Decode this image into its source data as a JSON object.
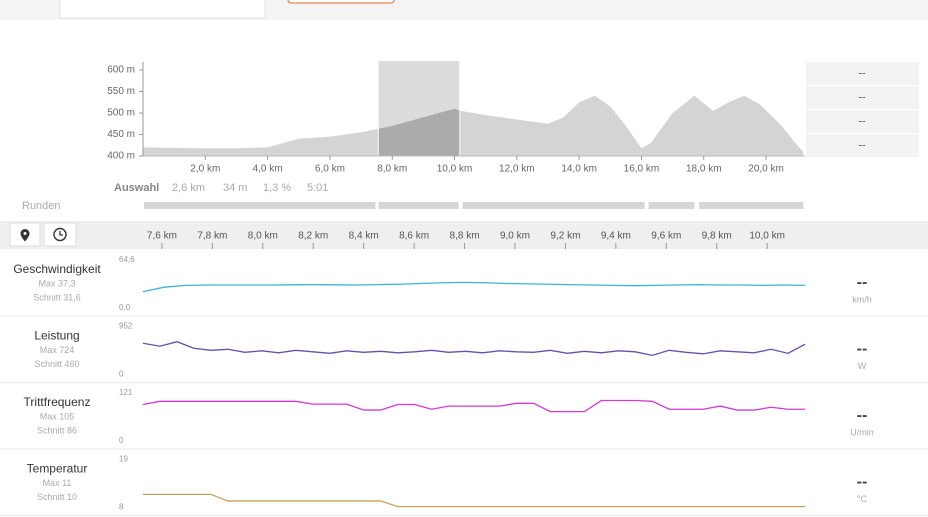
{
  "elevation": {
    "xlim": [
      0,
      21.25
    ],
    "xticks": [
      {
        "value": 2,
        "label": "2,0 km"
      },
      {
        "value": 4,
        "label": "4,0 km"
      },
      {
        "value": 6,
        "label": "6,0 km"
      },
      {
        "value": 8,
        "label": "8,0 km"
      },
      {
        "value": 10,
        "label": "10,0 km"
      },
      {
        "value": 12,
        "label": "12,0 km"
      },
      {
        "value": 14,
        "label": "14,0 km"
      },
      {
        "value": 16,
        "label": "16,0 km"
      },
      {
        "value": 18,
        "label": "18,0 km"
      },
      {
        "value": 20,
        "label": "20,0 km"
      }
    ],
    "yticks": [
      {
        "value": 400,
        "label": "400 m"
      },
      {
        "value": 450,
        "label": "450 m"
      },
      {
        "value": 500,
        "label": "500 m"
      },
      {
        "value": 550,
        "label": "550 m"
      },
      {
        "value": 600,
        "label": "600 m"
      }
    ],
    "selection": [
      7.55,
      10.17
    ],
    "x": [
      0,
      1,
      2,
      3,
      4,
      4.5,
      5,
      6,
      7,
      8,
      9,
      10,
      10.2,
      11,
      12,
      13,
      13.5,
      14,
      14.5,
      15,
      15.5,
      16,
      16.3,
      17,
      17.7,
      18.3,
      18.8,
      19.3,
      19.8,
      20.5,
      21,
      21.2
    ],
    "values": [
      420,
      419,
      418,
      418,
      420,
      430,
      440,
      445,
      455,
      470,
      490,
      510,
      505,
      495,
      485,
      475,
      490,
      525,
      540,
      515,
      470,
      418,
      430,
      500,
      540,
      505,
      525,
      540,
      520,
      470,
      425,
      410
    ],
    "stats": [
      "--",
      "--",
      "--",
      "--"
    ]
  },
  "selection_summary": {
    "label": "Auswahl",
    "distance": "2,6 km",
    "climb": "34 m",
    "grade": "1,3 %",
    "time": "5:01"
  },
  "laps": {
    "label": "Runden",
    "segments": [
      [
        0.03,
        7.46
      ],
      [
        7.56,
        10.13
      ],
      [
        10.26,
        16.1
      ],
      [
        16.23,
        17.7
      ],
      [
        17.85,
        21.2
      ]
    ]
  },
  "detail": {
    "xlim": [
      7.525,
      10.15
    ],
    "xticks": [
      {
        "value": 7.6,
        "label": "7,6 km"
      },
      {
        "value": 7.8,
        "label": "7,8 km"
      },
      {
        "value": 8.0,
        "label": "8,0 km"
      },
      {
        "value": 8.2,
        "label": "8,2 km"
      },
      {
        "value": 8.4,
        "label": "8,4 km"
      },
      {
        "value": 8.6,
        "label": "8,6 km"
      },
      {
        "value": 8.8,
        "label": "8,8 km"
      },
      {
        "value": 9.0,
        "label": "9,0 km"
      },
      {
        "value": 9.2,
        "label": "9,2 km"
      },
      {
        "value": 9.4,
        "label": "9,4 km"
      },
      {
        "value": 9.6,
        "label": "9,6 km"
      },
      {
        "value": 9.8,
        "label": "9,8 km"
      },
      {
        "value": 10.0,
        "label": "10,0 km"
      }
    ],
    "metrics": [
      {
        "name": "Geschwindigkeit",
        "max": "Max 37,3",
        "avg": "Schnitt 31,6",
        "current": "--",
        "unit": "km/h",
        "color": "#3bb3d6",
        "yticks": [
          {
            "value": 0,
            "label": "0,0"
          },
          {
            "value": 64.6,
            "label": "64,6"
          }
        ],
        "values": [
          22,
          28,
          30.5,
          31,
          31,
          31,
          31,
          31.2,
          31.5,
          31.2,
          31,
          31.5,
          32,
          33,
          34,
          34.5,
          34,
          33,
          32.5,
          32,
          31.5,
          31,
          30.5,
          30,
          30.5,
          31,
          31.5,
          31,
          31,
          30.5,
          31,
          30.5
        ]
      },
      {
        "name": "Leistung",
        "max": "Max 724",
        "avg": "Schnitt 460",
        "current": "--",
        "unit": "W",
        "color": "#6a4fb0",
        "yticks": [
          0,
          952
        ],
        "values": [
          620,
          560,
          650,
          520,
          480,
          500,
          440,
          470,
          430,
          480,
          450,
          420,
          470,
          440,
          460,
          430,
          450,
          480,
          440,
          460,
          430,
          470,
          450,
          440,
          480,
          420,
          460,
          430,
          470,
          450,
          380,
          480,
          440,
          410,
          470,
          450,
          430,
          500,
          420,
          600
        ]
      },
      {
        "name": "Trittfrequenz",
        "max": "Max 105",
        "avg": "Schnitt 86",
        "current": "--",
        "unit": "U/min",
        "color": "#d23ad2",
        "yticks": [
          0,
          121
        ],
        "values": [
          92,
          100,
          100,
          100,
          100,
          100,
          100,
          100,
          100,
          100,
          93,
          93,
          93,
          78,
          78,
          92,
          92,
          80,
          88,
          88,
          88,
          88,
          95,
          95,
          74,
          74,
          74,
          102,
          102,
          102,
          100,
          80,
          80,
          80,
          88,
          78,
          78,
          85,
          80,
          80
        ]
      },
      {
        "name": "Temperatur",
        "max": "Max 11",
        "avg": "Schnitt 10",
        "current": "--",
        "unit": "°C",
        "color": "#c9a25c",
        "yticks": [
          8,
          19
        ],
        "values": [
          11,
          11,
          11,
          11,
          11,
          9.5,
          9.5,
          9.5,
          9.5,
          9.5,
          9.5,
          9.5,
          9.5,
          9.5,
          9.5,
          8.2,
          8.2,
          8.2,
          8.2,
          8.2,
          8.2,
          8.2,
          8.2,
          8.2,
          8.2,
          8.2,
          8.2,
          8.2,
          8.2,
          8.2,
          8.2,
          8.2,
          8.2,
          8.2,
          8.2,
          8.2,
          8.2,
          8.2,
          8.2,
          8.2
        ]
      }
    ]
  }
}
